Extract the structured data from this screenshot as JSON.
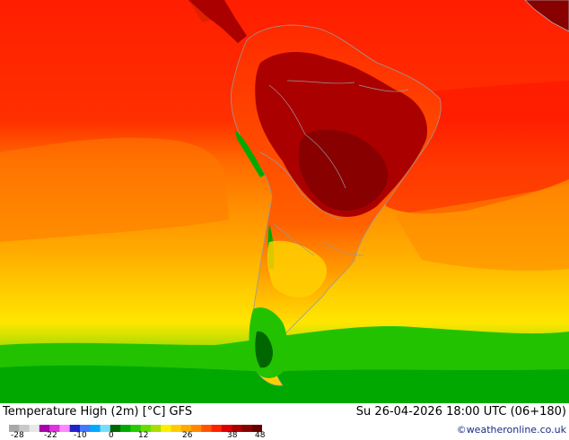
{
  "title": "Temperature High (2m) [°C] GFS",
  "run": "Su 26-04-2026 18:00 UTC (06+180)",
  "credit": "©weatheronline.co.uk",
  "legend": {
    "ticks": [
      "-28",
      "-22",
      "-10",
      "0",
      "12",
      "26",
      "38",
      "48"
    ],
    "colors": [
      "#a8a8a8",
      "#c8c8c8",
      "#e8e8e8",
      "#aa00aa",
      "#dd33dd",
      "#ff88ff",
      "#2222cc",
      "#4477ff",
      "#00aaff",
      "#77ddff",
      "#006600",
      "#00aa00",
      "#22cc00",
      "#66dd00",
      "#aadd00",
      "#ffee00",
      "#ffcc00",
      "#ffaa00",
      "#ff8800",
      "#ff5500",
      "#ff2200",
      "#dd0000",
      "#aa0000",
      "#880000",
      "#660000"
    ]
  },
  "colors": {
    "hot": "#ff2200",
    "very_hot": "#aa0000",
    "extreme": "#880000",
    "warm": "#ff8800",
    "mild": "#ffcc00",
    "cool": "#aadd00",
    "cold": "#00aa00",
    "borders": "#999999"
  }
}
